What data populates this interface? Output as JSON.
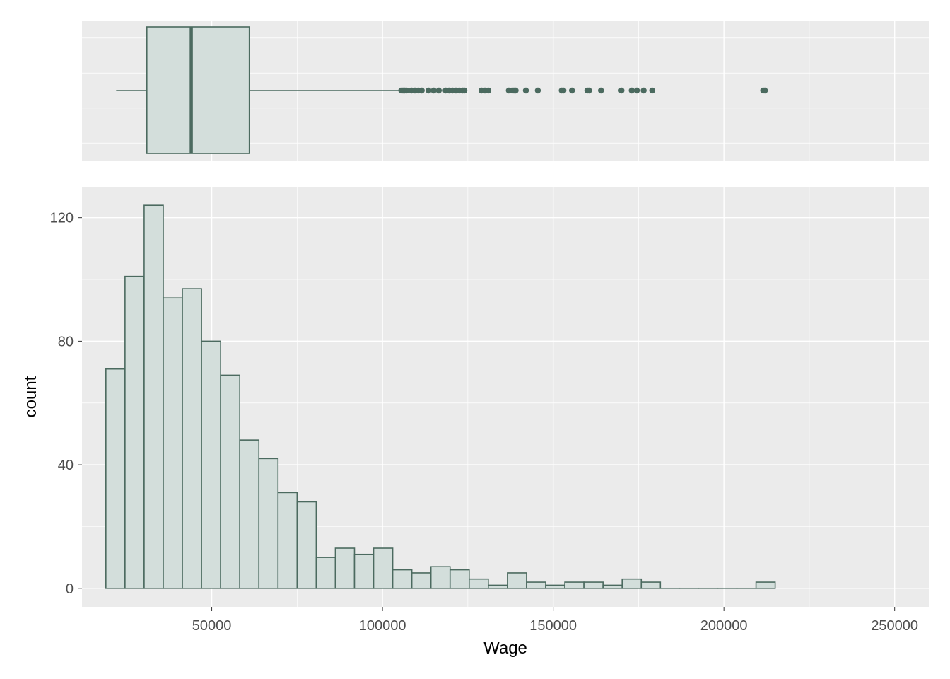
{
  "chart_data": [
    {
      "type": "box",
      "orientation": "horizontal",
      "variable": "Wage",
      "stats": {
        "whisker_low": 22000,
        "q1": 31000,
        "median": 44000,
        "q3": 61000,
        "whisker_high": 105000
      },
      "outliers": [
        105500,
        106000,
        106500,
        107000,
        108500,
        109500,
        110500,
        111500,
        113500,
        115000,
        116500,
        118500,
        119500,
        120500,
        121500,
        122500,
        123500,
        124000,
        129000,
        130000,
        131000,
        137000,
        138000,
        138500,
        139000,
        142000,
        145500,
        152500,
        153000,
        155500,
        160000,
        160500,
        164000,
        170000,
        173000,
        174500,
        176500,
        179000,
        211500,
        212000
      ],
      "xlim": [
        12000,
        260000
      ],
      "grid": true
    },
    {
      "type": "histogram",
      "xlabel": "Wage",
      "ylabel": "count",
      "bin_width": 5600,
      "bins": [
        {
          "x0": 19000,
          "x1": 24600,
          "count": 71
        },
        {
          "x0": 24600,
          "x1": 30200,
          "count": 101
        },
        {
          "x0": 30200,
          "x1": 35800,
          "count": 124
        },
        {
          "x0": 35800,
          "x1": 41400,
          "count": 94
        },
        {
          "x0": 41400,
          "x1": 47000,
          "count": 97
        },
        {
          "x0": 47000,
          "x1": 52600,
          "count": 80
        },
        {
          "x0": 52600,
          "x1": 58200,
          "count": 69
        },
        {
          "x0": 58200,
          "x1": 63800,
          "count": 48
        },
        {
          "x0": 63800,
          "x1": 69400,
          "count": 42
        },
        {
          "x0": 69400,
          "x1": 75000,
          "count": 31
        },
        {
          "x0": 75000,
          "x1": 80600,
          "count": 28
        },
        {
          "x0": 80600,
          "x1": 86200,
          "count": 10
        },
        {
          "x0": 86200,
          "x1": 91800,
          "count": 13
        },
        {
          "x0": 91800,
          "x1": 97400,
          "count": 11
        },
        {
          "x0": 97400,
          "x1": 103000,
          "count": 13
        },
        {
          "x0": 103000,
          "x1": 108600,
          "count": 6
        },
        {
          "x0": 108600,
          "x1": 114200,
          "count": 5
        },
        {
          "x0": 114200,
          "x1": 119800,
          "count": 7
        },
        {
          "x0": 119800,
          "x1": 125400,
          "count": 6
        },
        {
          "x0": 125400,
          "x1": 131000,
          "count": 3
        },
        {
          "x0": 131000,
          "x1": 136600,
          "count": 1
        },
        {
          "x0": 136600,
          "x1": 142200,
          "count": 5
        },
        {
          "x0": 142200,
          "x1": 147800,
          "count": 2
        },
        {
          "x0": 147800,
          "x1": 153400,
          "count": 1
        },
        {
          "x0": 153400,
          "x1": 159000,
          "count": 2
        },
        {
          "x0": 159000,
          "x1": 164600,
          "count": 2
        },
        {
          "x0": 164600,
          "x1": 170200,
          "count": 1
        },
        {
          "x0": 170200,
          "x1": 175800,
          "count": 3
        },
        {
          "x0": 175800,
          "x1": 181400,
          "count": 2
        },
        {
          "x0": 181400,
          "x1": 187000,
          "count": 0
        },
        {
          "x0": 187000,
          "x1": 192600,
          "count": 0
        },
        {
          "x0": 192600,
          "x1": 198200,
          "count": 0
        },
        {
          "x0": 198200,
          "x1": 203800,
          "count": 0
        },
        {
          "x0": 203800,
          "x1": 209400,
          "count": 0
        },
        {
          "x0": 209400,
          "x1": 215000,
          "count": 2
        }
      ],
      "xlim": [
        12000,
        260000
      ],
      "ylim": [
        -6,
        130
      ],
      "x_ticks": [
        50000,
        100000,
        150000,
        200000,
        250000
      ],
      "x_tick_labels": [
        "50000",
        "100000",
        "150000",
        "200000",
        "250000"
      ],
      "y_ticks": [
        0,
        40,
        80,
        120
      ],
      "y_tick_labels": [
        "0",
        "40",
        "80",
        "120"
      ],
      "grid": true
    }
  ],
  "colors": {
    "fill": "#D3DEDB",
    "outline": "#4B6A5F",
    "panel": "#EBEBEB",
    "grid": "#FFFFFF"
  }
}
